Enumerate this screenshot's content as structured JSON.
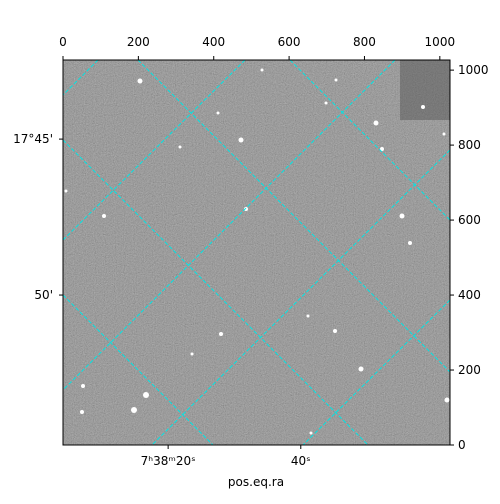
{
  "chart_data": {
    "type": "image",
    "xlabel": "pos.eq.ra",
    "xlim": [
      0,
      1027
    ],
    "ylim": [
      0,
      1027
    ],
    "xticks": [
      0,
      200,
      400,
      600,
      800,
      1000
    ],
    "yticks": [
      0,
      200,
      400,
      600,
      800,
      1000
    ],
    "left_ticks": [
      {
        "value": 816,
        "label": "17°45'"
      },
      {
        "value": 400,
        "label": "50'"
      }
    ],
    "bottom_ticks": [
      {
        "value": 279,
        "label": "7ʰ38ᵐ20ˢ"
      },
      {
        "value": 631,
        "label": "40ˢ"
      }
    ],
    "grid_color": "#00e5e5"
  }
}
